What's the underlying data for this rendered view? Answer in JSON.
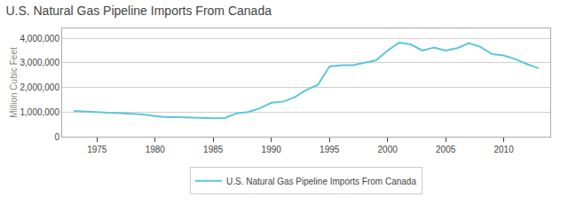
{
  "chart_data": {
    "type": "line",
    "title": "U.S. Natural Gas Pipeline Imports From Canada",
    "ylabel": "Million Cubic Feet",
    "x": [
      1973,
      1974,
      1975,
      1976,
      1977,
      1978,
      1979,
      1980,
      1981,
      1982,
      1983,
      1984,
      1985,
      1986,
      1987,
      1988,
      1989,
      1990,
      1991,
      1992,
      1993,
      1994,
      1995,
      1996,
      1997,
      1998,
      1999,
      2000,
      2001,
      2002,
      2003,
      2004,
      2005,
      2006,
      2007,
      2008,
      2009,
      2010,
      2011,
      2012,
      2013
    ],
    "series": [
      {
        "name": "U.S. Natural Gas Pipeline Imports From Canada",
        "color": "#5bc8d4",
        "values": [
          1050000,
          1020000,
          1000000,
          970000,
          960000,
          940000,
          900000,
          840000,
          790000,
          790000,
          770000,
          760000,
          750000,
          760000,
          950000,
          1000000,
          1150000,
          1380000,
          1420000,
          1600000,
          1900000,
          2100000,
          2850000,
          2900000,
          2900000,
          3000000,
          3100000,
          3500000,
          3820000,
          3750000,
          3500000,
          3620000,
          3500000,
          3600000,
          3800000,
          3650000,
          3350000,
          3300000,
          3150000,
          2950000,
          2780000
        ]
      }
    ],
    "xlim": [
      1972,
      2014
    ],
    "ylim": [
      0,
      4400000
    ],
    "xticks": [
      1975,
      1980,
      1985,
      1990,
      1995,
      2000,
      2005,
      2010
    ],
    "yticks": [
      0,
      {
        "value": 1000000,
        "label": "1,000,000"
      },
      {
        "value": 2000000,
        "label": "2,000,000"
      },
      {
        "value": 3000000,
        "label": "3,000,000"
      },
      {
        "value": 4000000,
        "label": "4,000,000"
      }
    ],
    "grid": true,
    "legend": "bottom"
  }
}
